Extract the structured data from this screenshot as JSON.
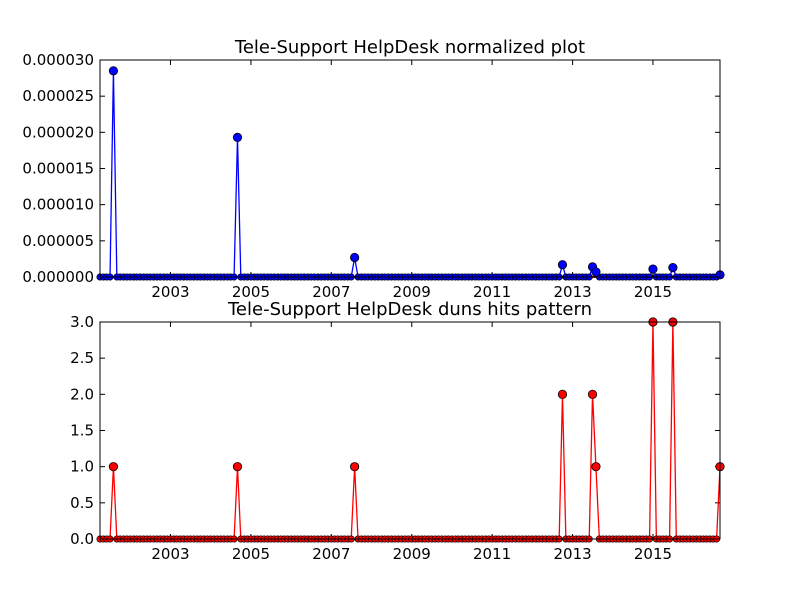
{
  "chart_data": [
    {
      "type": "line",
      "title": "Tele-Support HelpDesk normalized plot",
      "xlabel": "",
      "ylabel": "",
      "xlim": [
        "2001-04-01",
        "2016-09-01"
      ],
      "ylim": [
        0,
        3e-05
      ],
      "yticks": [
        0,
        5e-06,
        1e-05,
        1.5e-05,
        2e-05,
        2.5e-05,
        3e-05
      ],
      "ytick_labels": [
        "0.000000",
        "0.000005",
        "0.000010",
        "0.000015",
        "0.000020",
        "0.000025",
        "0.000030"
      ],
      "xticks": [
        "2003-01-01",
        "2005-01-01",
        "2007-01-01",
        "2009-01-01",
        "2011-01-01",
        "2013-01-01",
        "2015-01-01"
      ],
      "xtick_labels": [
        "2003",
        "2005",
        "2007",
        "2009",
        "2011",
        "2013",
        "2015"
      ],
      "grid": false,
      "line_color": "#0000ff",
      "marker_color": "#0000ff",
      "baseline_color": "#ff0000",
      "points": [
        {
          "x": "2001-08-01",
          "y": 2.85e-05
        },
        {
          "x": "2004-09-01",
          "y": 1.93e-05
        },
        {
          "x": "2007-08-01",
          "y": 2.7e-06
        },
        {
          "x": "2012-10-01",
          "y": 1.7e-06
        },
        {
          "x": "2013-07-01",
          "y": 1.4e-06
        },
        {
          "x": "2013-08-01",
          "y": 7e-07
        },
        {
          "x": "2015-01-01",
          "y": 1.1e-06
        },
        {
          "x": "2015-07-01",
          "y": 1.3e-06
        },
        {
          "x": "2016-09-01",
          "y": 3e-07
        }
      ]
    },
    {
      "type": "line",
      "title": "Tele-Support HelpDesk duns hits pattern",
      "xlabel": "",
      "ylabel": "",
      "xlim": [
        "2001-04-01",
        "2016-09-01"
      ],
      "ylim": [
        0,
        3
      ],
      "yticks": [
        0,
        0.5,
        1,
        1.5,
        2,
        2.5,
        3
      ],
      "ytick_labels": [
        "0.0",
        "0.5",
        "1.0",
        "1.5",
        "2.0",
        "2.5",
        "3.0"
      ],
      "xticks": [
        "2003-01-01",
        "2005-01-01",
        "2007-01-01",
        "2009-01-01",
        "2011-01-01",
        "2013-01-01",
        "2015-01-01"
      ],
      "xtick_labels": [
        "2003",
        "2005",
        "2007",
        "2009",
        "2011",
        "2013",
        "2015"
      ],
      "grid": false,
      "line_color": "#ff0000",
      "marker_color": "#ff0000",
      "points": [
        {
          "x": "2001-08-01",
          "y": 1
        },
        {
          "x": "2004-09-01",
          "y": 1
        },
        {
          "x": "2007-08-01",
          "y": 1
        },
        {
          "x": "2012-10-01",
          "y": 2
        },
        {
          "x": "2013-07-01",
          "y": 2
        },
        {
          "x": "2013-08-01",
          "y": 1
        },
        {
          "x": "2015-01-01",
          "y": 3
        },
        {
          "x": "2015-07-01",
          "y": 3
        },
        {
          "x": "2016-09-01",
          "y": 1
        }
      ]
    }
  ]
}
